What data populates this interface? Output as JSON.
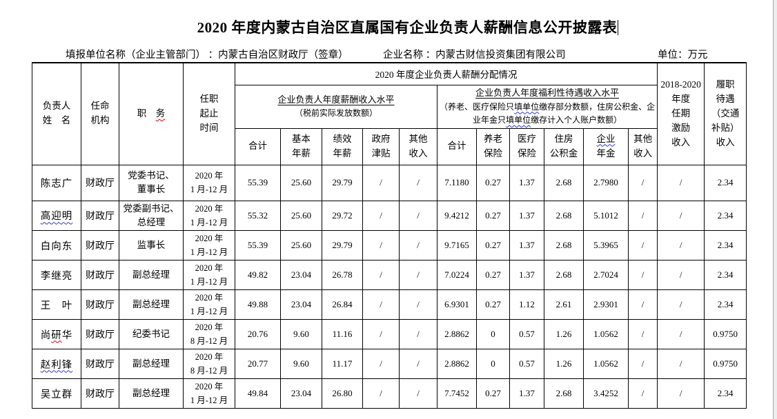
{
  "title": {
    "text": "2020 年度内蒙古自治区直属国有企业负责人薪酬信息公开披露表"
  },
  "meta": {
    "report_unit": "填报单位名称（企业主管部门） ：内蒙古自治区财政厅（签章）",
    "company_name": "企业名称 ：内蒙古财信投资集团有限公司",
    "unit": "单位：万元"
  },
  "colors": {
    "border": "#000000",
    "spellcheck_red": "#d40000",
    "grammar_blue": "#2b36c9",
    "page_edge_gray": "#ededed"
  },
  "table": {
    "header": {
      "name": "负责人\n姓　名",
      "agency": "任命\n机构",
      "duty_parts": [
        {
          "t": "职　",
          "m": ""
        },
        {
          "t": "务",
          "m": "red"
        }
      ],
      "period": "任职\n起止\n时间",
      "salary_group": "2020 年度企业负责人薪酬分配情况",
      "salary_sub_title": "企业负责人年度薪酬收入水平",
      "salary_sub_note": "（税前实际发放数额）",
      "welfare_sub_title": "企业负责人年度福利性待遇收入水平",
      "welfare_note_parts": [
        {
          "t": "（养老、医疗保险只",
          "m": ""
        },
        {
          "t": "填单位",
          "m": "blue"
        },
        {
          "t": "缴存部分数额，住房公积金、企业年金只",
          "m": ""
        },
        {
          "t": "填单位",
          "m": "blue"
        },
        {
          "t": "缴存计入个人账户数额）",
          "m": ""
        }
      ],
      "cols": [
        {
          "parts": [
            {
              "t": "合计",
              "m": ""
            }
          ]
        },
        {
          "parts": [
            {
              "t": "基本\n年薪",
              "m": ""
            }
          ]
        },
        {
          "parts": [
            {
              "t": "绩效\n年薪",
              "m": ""
            }
          ]
        },
        {
          "parts": [
            {
              "t": "政府\n津贴",
              "m": ""
            }
          ]
        },
        {
          "parts": [
            {
              "t": "其他\n收入",
              "m": ""
            }
          ]
        },
        {
          "parts": [
            {
              "t": "合计",
              "m": ""
            }
          ]
        },
        {
          "parts": [
            {
              "t": "养老\n保险",
              "m": ""
            }
          ]
        },
        {
          "parts": [
            {
              "t": "医疗\n保险",
              "m": ""
            }
          ]
        },
        {
          "parts": [
            {
              "t": "住房\n公积金",
              "m": ""
            }
          ]
        },
        {
          "parts": [
            {
              "t": "企业",
              "m": "blue"
            },
            {
              "t": "\n年金",
              "m": ""
            }
          ]
        },
        {
          "parts": [
            {
              "t": "其他\n收入",
              "m": ""
            }
          ]
        }
      ],
      "tenure_incentive": "2018-2020\n年度\n任期\n激励\n收入",
      "duty_allowance": "履职\n待遇\n（交通\n补贴）\n收入"
    },
    "rows": [
      {
        "name_parts": [
          {
            "t": "陈志广",
            "m": ""
          }
        ],
        "agency": "财政厅",
        "duty": "党委书记、\n董事长",
        "period": "2020 年\n1 月-12 月",
        "values": [
          "55.39",
          "25.60",
          "29.79",
          "/",
          "/",
          "7.1180",
          "0.27",
          "1.37",
          "2.68",
          "2.7980",
          "/",
          "/",
          "2.34"
        ]
      },
      {
        "name_parts": [
          {
            "t": "高迎明",
            "m": "blue"
          }
        ],
        "agency": "财政厅",
        "duty": "党委副书记、\n总经理",
        "period": "2020 年\n1 月-12 月",
        "values": [
          "55.32",
          "25.60",
          "29.72",
          "/",
          "/",
          "9.4212",
          "0.27",
          "1.37",
          "2.68",
          "5.1012",
          "/",
          "/",
          "2.34"
        ]
      },
      {
        "name_parts": [
          {
            "t": "白向东",
            "m": ""
          }
        ],
        "agency": "财政厅",
        "duty": "监事长",
        "period": "2020 年\n1 月-12 月",
        "values": [
          "55.39",
          "25.60",
          "29.79",
          "/",
          "/",
          "9.7165",
          "0.27",
          "1.37",
          "2.68",
          "5.3965",
          "/",
          "/",
          "2.34"
        ]
      },
      {
        "name_parts": [
          {
            "t": "李继亮",
            "m": ""
          }
        ],
        "agency": "财政厅",
        "duty": "副总经理",
        "period": "2020 年\n1 月-12 月",
        "values": [
          "49.82",
          "23.04",
          "26.78",
          "/",
          "/",
          "7.0224",
          "0.27",
          "1.37",
          "2.68",
          "2.7024",
          "/",
          "/",
          "2.34"
        ]
      },
      {
        "name_parts": [
          {
            "t": "王　叶",
            "m": ""
          }
        ],
        "agency": "财政厅",
        "duty": "副总经理",
        "period": "2020 年\n1 月-12 月",
        "values": [
          "49.88",
          "23.04",
          "26.84",
          "/",
          "/",
          "6.9301",
          "0.27",
          "1.12",
          "2.61",
          "2.9301",
          "/",
          "/",
          "2.34"
        ]
      },
      {
        "name_parts": [
          {
            "t": "尚",
            "m": ""
          },
          {
            "t": "研",
            "m": "red"
          },
          {
            "t": "华",
            "m": ""
          }
        ],
        "agency": "财政厅",
        "duty": "纪委书记",
        "period": "2020 年\n8 月-12 月",
        "values": [
          "20.76",
          "9.60",
          "11.16",
          "/",
          "/",
          "2.8862",
          "0",
          "0.57",
          "1.26",
          "1.0562",
          "/",
          "/",
          "0.9750"
        ]
      },
      {
        "name_parts": [
          {
            "t": "赵利锋",
            "m": "blue"
          }
        ],
        "agency": "财政厅",
        "duty": "副总经理",
        "period": "2020 年\n8 月-12 月",
        "values": [
          "20.77",
          "9.60",
          "11.17",
          "/",
          "/",
          "2.8862",
          "0",
          "0.57",
          "1.26",
          "1.0562",
          "/",
          "/",
          "0.9750"
        ]
      },
      {
        "name_parts": [
          {
            "t": "吴立群",
            "m": ""
          }
        ],
        "agency": "财政厅",
        "duty": "副总经理",
        "period": "2020 年\n1 月-12 月",
        "values": [
          "49.84",
          "23.04",
          "26.80",
          "/",
          "/",
          "7.7452",
          "0.27",
          "1.37",
          "2.68",
          "3.4252",
          "/",
          "/",
          "2.34"
        ]
      }
    ]
  }
}
